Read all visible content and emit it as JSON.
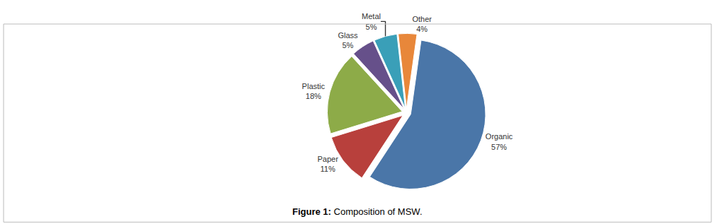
{
  "chart_data": {
    "type": "pie",
    "title": "Figure 1: Composition of MSW.",
    "categories": [
      "Organic",
      "Paper",
      "Plastic",
      "Glass",
      "Metal",
      "Other"
    ],
    "values": [
      57,
      11,
      18,
      5,
      5,
      4
    ],
    "value_labels": [
      "57%",
      "11%",
      "18%",
      "5%",
      "5%",
      "4%"
    ],
    "colors": [
      "#4a76a8",
      "#b8403c",
      "#8dab48",
      "#66508a",
      "#3a9fb8",
      "#e8873a"
    ],
    "data_labels": true,
    "legend": false
  }
}
